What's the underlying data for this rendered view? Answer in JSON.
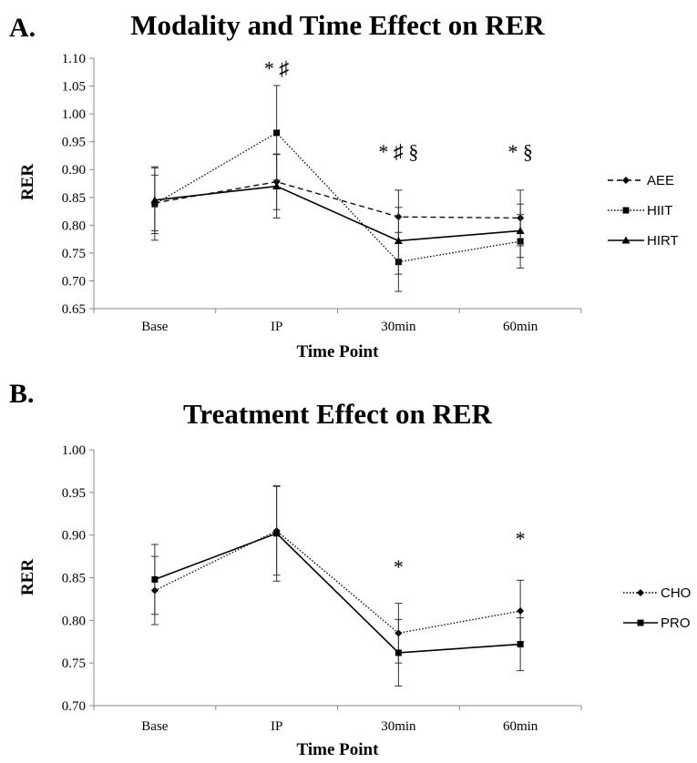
{
  "colors": {
    "series_line": "#000000",
    "axis": "#888888",
    "background": "#ffffff"
  },
  "chart_data": [
    {
      "panel": "A.",
      "type": "line",
      "title": "Modality and Time Effect on RER",
      "xlabel": "Time Point",
      "ylabel": "RER",
      "categories": [
        "Base",
        "IP",
        "30min",
        "60min"
      ],
      "ylim": [
        0.65,
        1.1
      ],
      "yticks": [
        "0.65",
        "0.70",
        "0.75",
        "0.80",
        "0.85",
        "0.90",
        "0.95",
        "1.00",
        "1.05",
        "1.10"
      ],
      "grid": false,
      "legend": "right",
      "series": [
        {
          "name": "AEE",
          "line": "dashed",
          "marker": "diamond",
          "values": [
            0.84,
            0.878,
            0.815,
            0.813
          ],
          "error": [
            0.05,
            0.05,
            0.048,
            0.05
          ]
        },
        {
          "name": "HIIT",
          "line": "dotted",
          "marker": "square",
          "values": [
            0.838,
            0.966,
            0.734,
            0.771
          ],
          "error": [
            0.065,
            0.085,
            0.053,
            0.048
          ]
        },
        {
          "name": "HIRT",
          "line": "solid",
          "marker": "triangle",
          "values": [
            0.845,
            0.87,
            0.772,
            0.79
          ],
          "error": [
            0.06,
            0.057,
            0.06,
            0.048
          ]
        }
      ],
      "annotations": [
        {
          "category": "IP",
          "y": 1.07,
          "text": "* ♯"
        },
        {
          "category": "30min",
          "y": 0.92,
          "text": "* ♯  §"
        },
        {
          "category": "60min",
          "y": 0.92,
          "text": "* §"
        }
      ]
    },
    {
      "panel": "B.",
      "type": "line",
      "title": "Treatment Effect on RER",
      "xlabel": "Time Point",
      "ylabel": "RER",
      "categories": [
        "Base",
        "IP",
        "30min",
        "60min"
      ],
      "ylim": [
        0.7,
        1.0
      ],
      "yticks": [
        "0.70",
        "0.75",
        "0.80",
        "0.85",
        "0.90",
        "0.95",
        "1.00"
      ],
      "grid": false,
      "legend": "right",
      "series": [
        {
          "name": "CHO",
          "line": "dotted",
          "marker": "diamond",
          "values": [
            0.835,
            0.905,
            0.785,
            0.811
          ],
          "error": [
            0.04,
            0.052,
            0.035,
            0.036
          ]
        },
        {
          "name": "PRO",
          "line": "solid",
          "marker": "square",
          "values": [
            0.848,
            0.902,
            0.762,
            0.772
          ],
          "error": [
            0.041,
            0.056,
            0.039,
            0.031
          ]
        }
      ],
      "annotations": [
        {
          "category": "30min",
          "y": 0.855,
          "text": "*"
        },
        {
          "category": "60min",
          "y": 0.888,
          "text": "*"
        }
      ]
    }
  ]
}
